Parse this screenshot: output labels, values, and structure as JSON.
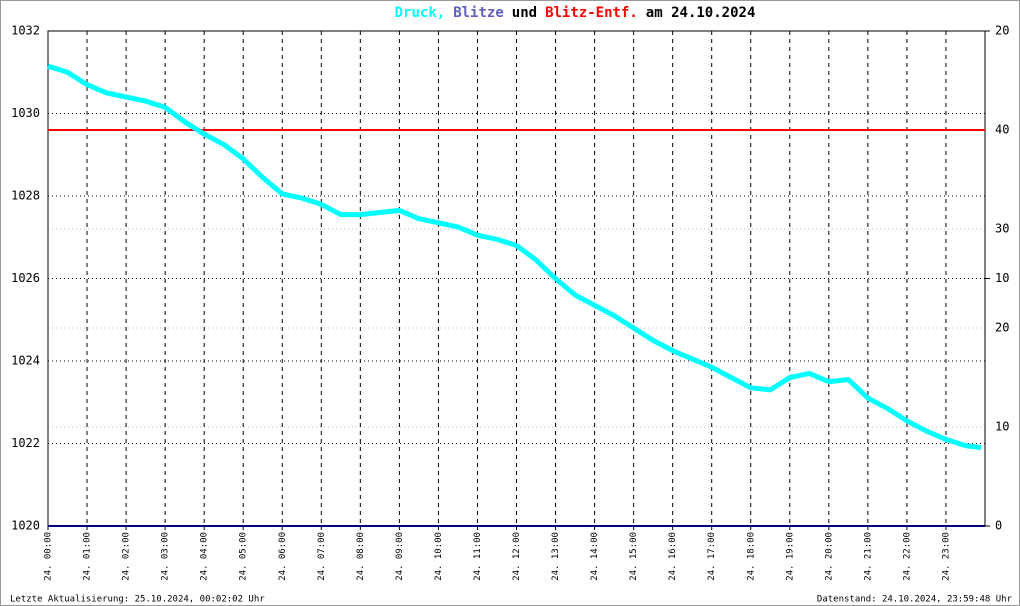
{
  "chart_data": {
    "type": "line",
    "title_joiners": [
      ",",
      "und",
      "am 24.10.2024"
    ],
    "footer_left": "Letzte Aktualisierung: 25.10.2024, 00:02:02 Uhr",
    "footer_right": "Datenstand: 24.10.2024, 23:59:48 Uhr",
    "xlim": [
      0,
      24
    ],
    "xticks": [
      {
        "value": 0,
        "label": "24. 00:00"
      },
      {
        "value": 1,
        "label": "24. 01:00"
      },
      {
        "value": 2,
        "label": "24. 02:00"
      },
      {
        "value": 3,
        "label": "24. 03:00"
      },
      {
        "value": 4,
        "label": "24. 04:00"
      },
      {
        "value": 5,
        "label": "24. 05:00"
      },
      {
        "value": 6,
        "label": "24. 06:00"
      },
      {
        "value": 7,
        "label": "24. 07:00"
      },
      {
        "value": 8,
        "label": "24. 08:00"
      },
      {
        "value": 9,
        "label": "24. 09:00"
      },
      {
        "value": 10,
        "label": "24. 10:00"
      },
      {
        "value": 11,
        "label": "24. 11:00"
      },
      {
        "value": 12,
        "label": "24. 12:00"
      },
      {
        "value": 13,
        "label": "24. 13:00"
      },
      {
        "value": 14,
        "label": "24. 14:00"
      },
      {
        "value": 15,
        "label": "24. 15:00"
      },
      {
        "value": 16,
        "label": "24. 16:00"
      },
      {
        "value": 17,
        "label": "24. 17:00"
      },
      {
        "value": 18,
        "label": "24. 18:00"
      },
      {
        "value": 19,
        "label": "24. 19:00"
      },
      {
        "value": 20,
        "label": "24. 20:00"
      },
      {
        "value": 21,
        "label": "24. 21:00"
      },
      {
        "value": 22,
        "label": "24. 22:00"
      },
      {
        "value": 23,
        "label": "24. 23:00"
      }
    ],
    "ylim": [
      1020,
      1032
    ],
    "yticks": [
      1020,
      1022,
      1024,
      1026,
      1028,
      1030,
      1032
    ],
    "y2lim": [
      0,
      20
    ],
    "y2ticks": [
      0,
      10,
      20
    ],
    "y3lim": [
      0,
      50
    ],
    "y3ticks": [
      10,
      20,
      30,
      40
    ],
    "grid": true,
    "series": [
      {
        "name": "Druck",
        "color": "#00ffff",
        "axis": "y",
        "x": [
          0,
          0.5,
          1,
          1.5,
          2,
          2.5,
          3,
          3.5,
          4,
          4.5,
          5,
          5.5,
          6,
          6.5,
          7,
          7.5,
          8,
          8.5,
          9,
          9.5,
          10,
          10.5,
          11,
          11.5,
          12,
          12.5,
          13,
          13.5,
          14,
          14.5,
          15,
          15.5,
          16,
          16.5,
          17,
          17.5,
          18,
          18.5,
          19,
          19.5,
          20,
          20.5,
          21,
          21.5,
          22,
          22.5,
          23,
          23.5,
          23.9
        ],
        "values": [
          1031.15,
          1031.0,
          1030.7,
          1030.5,
          1030.4,
          1030.3,
          1030.15,
          1029.8,
          1029.5,
          1029.25,
          1028.9,
          1028.45,
          1028.05,
          1027.95,
          1027.8,
          1027.55,
          1027.55,
          1027.6,
          1027.65,
          1027.45,
          1027.35,
          1027.25,
          1027.05,
          1026.95,
          1026.8,
          1026.45,
          1026.0,
          1025.6,
          1025.35,
          1025.1,
          1024.8,
          1024.5,
          1024.25,
          1024.05,
          1023.85,
          1023.6,
          1023.35,
          1023.3,
          1023.6,
          1023.7,
          1023.5,
          1023.55,
          1023.1,
          1022.85,
          1022.55,
          1022.3,
          1022.1,
          1021.95,
          1021.9
        ]
      },
      {
        "name": "Blitze",
        "color": "#000080",
        "axis": "y2",
        "x": [
          0,
          24
        ],
        "values": [
          0,
          0
        ]
      },
      {
        "name": "Blitz-Entf.",
        "color": "#ff0000",
        "axis": "y3",
        "x": [
          0,
          24
        ],
        "values": [
          40,
          40
        ]
      }
    ]
  }
}
